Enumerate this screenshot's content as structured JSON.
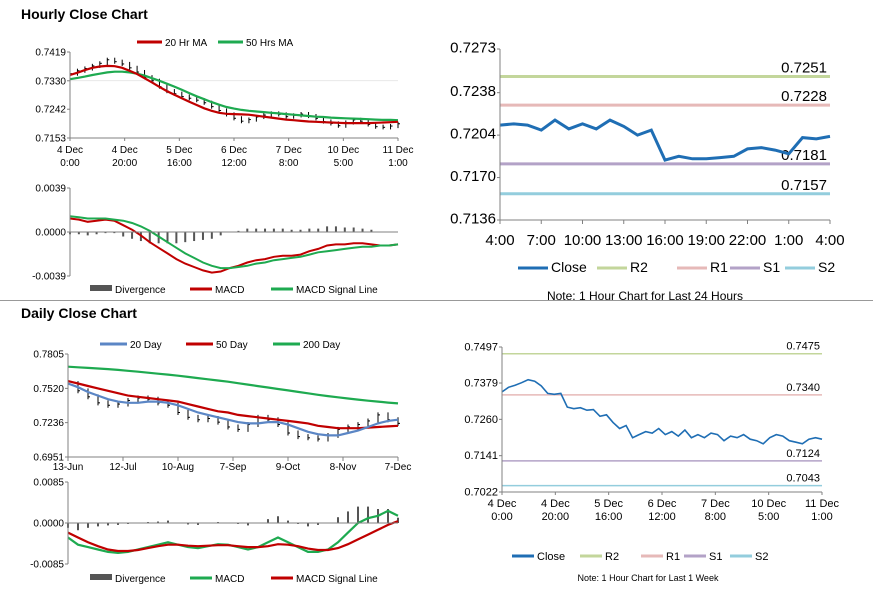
{
  "sections": {
    "hourly_title": "Hourly Close Chart",
    "daily_title": "Daily Close Chart"
  },
  "colors": {
    "ma_short": "#c00000",
    "ma_long": "#1eaa50",
    "ma_200": "#1eaa50",
    "ma_20day": "#5b86c5",
    "macd_red": "#c00000",
    "macd_green": "#1eaa50",
    "price": "#000000",
    "divergence": "#555555",
    "close_blue": "#1f6eb4",
    "r2": "#c3d69b",
    "r1": "#e6b9b8",
    "s1": "#b3a2c7",
    "s2": "#93cddd",
    "axis": "#808080"
  },
  "chart_data": [
    {
      "id": "hourly_price",
      "type": "line",
      "ylim": [
        0.7153,
        0.7419
      ],
      "ytick_labels": [
        "0.7419",
        "0.7330",
        "0.7242",
        "0.7153"
      ],
      "ytick_values": [
        0.7419,
        0.733,
        0.7242,
        0.7153
      ],
      "xtick_labels": [
        [
          "4 Dec",
          "0:00"
        ],
        [
          "4 Dec",
          "20:00"
        ],
        [
          "5 Dec",
          "16:00"
        ],
        [
          "6 Dec",
          "12:00"
        ],
        [
          "7 Dec",
          "8:00"
        ],
        [
          "10 Dec",
          "5:00"
        ],
        [
          "11 Dec",
          "1:00"
        ]
      ],
      "legend": [
        "20 Hr MA",
        "50 Hrs MA"
      ],
      "series": [
        {
          "name": "Close",
          "values": [
            0.7352,
            0.7361,
            0.7368,
            0.7376,
            0.7384,
            0.7395,
            0.7389,
            0.7382,
            0.737,
            0.7357,
            0.7341,
            0.733,
            0.7312,
            0.7298,
            0.729,
            0.7281,
            0.7276,
            0.727,
            0.7262,
            0.725,
            0.7238,
            0.7226,
            0.7214,
            0.7205,
            0.721,
            0.7218,
            0.7224,
            0.7229,
            0.7226,
            0.7219,
            0.7223,
            0.7227,
            0.7221,
            0.7214,
            0.7204,
            0.7198,
            0.7191,
            0.7201,
            0.7209,
            0.7205,
            0.7195,
            0.7188,
            0.7186,
            0.719,
            0.7197
          ]
        },
        {
          "name": "20 Hr MA",
          "values": [
            0.7348,
            0.7355,
            0.7363,
            0.737,
            0.7374,
            0.7376,
            0.7375,
            0.737,
            0.7361,
            0.7351,
            0.7338,
            0.7325,
            0.7311,
            0.7298,
            0.7287,
            0.7276,
            0.7265,
            0.7255,
            0.7245,
            0.7237,
            0.7231,
            0.7228,
            0.7227,
            0.7226,
            0.7225,
            0.7222,
            0.7219,
            0.7216,
            0.7213,
            0.721,
            0.7208,
            0.7206,
            0.7204,
            0.7203,
            0.7202,
            0.7201,
            0.72,
            0.7199,
            0.7199,
            0.7199,
            0.7199,
            0.72,
            0.7201,
            0.7202,
            0.7203
          ]
        },
        {
          "name": "50 Hrs MA",
          "values": [
            0.7335,
            0.7339,
            0.7343,
            0.7348,
            0.7352,
            0.7356,
            0.7358,
            0.7358,
            0.7356,
            0.7352,
            0.7346,
            0.7338,
            0.733,
            0.7321,
            0.7312,
            0.7302,
            0.7292,
            0.7282,
            0.7273,
            0.7264,
            0.7256,
            0.7249,
            0.7244,
            0.724,
            0.7237,
            0.7235,
            0.7233,
            0.7231,
            0.7229,
            0.7227,
            0.7225,
            0.7223,
            0.7221,
            0.7219,
            0.7218,
            0.7216,
            0.7215,
            0.7214,
            0.7213,
            0.7212,
            0.7211,
            0.721,
            0.7209,
            0.7209,
            0.7208
          ]
        }
      ]
    },
    {
      "id": "hourly_macd",
      "type": "line",
      "ylim": [
        -0.0039,
        0.0039
      ],
      "ytick_labels": [
        "0.0039",
        "0.0000",
        "-0.0039"
      ],
      "ytick_values": [
        0.0039,
        0.0,
        -0.0039
      ],
      "legend": [
        "Divergence",
        "MACD",
        "MACD Signal Line"
      ],
      "series": [
        {
          "name": "MACD",
          "values": [
            0.0012,
            0.0011,
            0.0009,
            0.001,
            0.0011,
            0.001,
            0.0006,
            0.0002,
            -0.0003,
            -0.0009,
            -0.0014,
            -0.0019,
            -0.0024,
            -0.0028,
            -0.0031,
            -0.0034,
            -0.0036,
            -0.0035,
            -0.0032,
            -0.003,
            -0.0027,
            -0.0025,
            -0.0024,
            -0.0022,
            -0.0021,
            -0.0021,
            -0.002,
            -0.0017,
            -0.0015,
            -0.0012,
            -0.0011,
            -0.0011,
            -0.001,
            -0.001,
            -0.0011,
            -0.0012,
            -0.0012,
            -0.0011
          ]
        },
        {
          "name": "MACD Signal Line",
          "values": [
            0.0014,
            0.0013,
            0.0012,
            0.0012,
            0.0012,
            0.0011,
            0.001,
            0.0008,
            0.0005,
            0.0001,
            -0.0004,
            -0.0009,
            -0.0014,
            -0.0019,
            -0.0023,
            -0.0027,
            -0.003,
            -0.0032,
            -0.0032,
            -0.0031,
            -0.003,
            -0.0028,
            -0.0027,
            -0.0025,
            -0.0024,
            -0.0023,
            -0.0022,
            -0.002,
            -0.0018,
            -0.0017,
            -0.0016,
            -0.0015,
            -0.0014,
            -0.0013,
            -0.0013,
            -0.0012,
            -0.0012,
            -0.0011
          ]
        },
        {
          "name": "Divergence",
          "values": [
            -0.0002,
            -0.0002,
            -0.0003,
            -0.0002,
            -0.0001,
            -0.0001,
            -0.0004,
            -0.0006,
            -0.0008,
            -0.001,
            -0.001,
            -0.001,
            -0.001,
            -0.0009,
            -0.0008,
            -0.0007,
            -0.0006,
            -0.0003,
            0.0,
            0.0001,
            0.0003,
            0.0003,
            0.0003,
            0.0003,
            0.0003,
            0.0002,
            0.0002,
            0.0003,
            0.0003,
            0.0005,
            0.0005,
            0.0004,
            0.0004,
            0.0003,
            0.0002,
            0.0,
            0.0,
            0.0
          ]
        }
      ]
    },
    {
      "id": "hourly_levels",
      "type": "line",
      "ylim": [
        0.7136,
        0.7273
      ],
      "ytick_labels": [
        "0.7273",
        "0.7238",
        "0.7204",
        "0.7170",
        "0.7136"
      ],
      "ytick_values": [
        0.7273,
        0.7238,
        0.7204,
        0.717,
        0.7136
      ],
      "xtick_labels": [
        "4:00",
        "7:00",
        "10:00",
        "13:00",
        "16:00",
        "19:00",
        "22:00",
        "1:00",
        "4:00"
      ],
      "levels": [
        {
          "name": "R2",
          "value": 0.7251,
          "label": "0.7251"
        },
        {
          "name": "R1",
          "value": 0.7228,
          "label": "0.7228"
        },
        {
          "name": "S1",
          "value": 0.7181,
          "label": "0.7181"
        },
        {
          "name": "S2",
          "value": 0.7157,
          "label": "0.7157"
        }
      ],
      "series": [
        {
          "name": "Close",
          "values": [
            0.7212,
            0.7213,
            0.7212,
            0.7208,
            0.7216,
            0.7209,
            0.7213,
            0.7209,
            0.7216,
            0.7211,
            0.7204,
            0.7208,
            0.7184,
            0.7187,
            0.7185,
            0.7185,
            0.7186,
            0.7187,
            0.7193,
            0.7194,
            0.7192,
            0.7189,
            0.7202,
            0.7201,
            0.7203
          ]
        }
      ],
      "legend": [
        "Close",
        "R2",
        "R1",
        "S1",
        "S2"
      ],
      "note": "Note: 1 Hour Chart for Last 24 Hours"
    },
    {
      "id": "daily_price",
      "type": "line",
      "ylim": [
        0.6951,
        0.7805
      ],
      "ytick_labels": [
        "0.7805",
        "0.7520",
        "0.7236",
        "0.6951"
      ],
      "ytick_values": [
        0.7805,
        0.752,
        0.7236,
        0.6951
      ],
      "xtick_labels": [
        "13-Jun",
        "12-Jul",
        "10-Aug",
        "7-Sep",
        "9-Oct",
        "8-Nov",
        "7-Dec"
      ],
      "legend": [
        "20 Day",
        "50 Day",
        "200 Day"
      ],
      "series": [
        {
          "name": "Close",
          "values": [
            0.756,
            0.75,
            0.745,
            0.74,
            0.738,
            0.739,
            0.742,
            0.744,
            0.743,
            0.74,
            0.738,
            0.732,
            0.728,
            0.726,
            0.727,
            0.724,
            0.72,
            0.718,
            0.722,
            0.728,
            0.726,
            0.722,
            0.715,
            0.712,
            0.711,
            0.71,
            0.713,
            0.718,
            0.72,
            0.722,
            0.725,
            0.73,
            0.726,
            0.723
          ]
        },
        {
          "name": "20 Day",
          "values": [
            0.756,
            0.753,
            0.749,
            0.746,
            0.743,
            0.741,
            0.74,
            0.74,
            0.741,
            0.741,
            0.74,
            0.738,
            0.735,
            0.732,
            0.73,
            0.728,
            0.726,
            0.724,
            0.723,
            0.723,
            0.724,
            0.724,
            0.722,
            0.719,
            0.716,
            0.714,
            0.713,
            0.713,
            0.715,
            0.717,
            0.72,
            0.723,
            0.725,
            0.726
          ]
        },
        {
          "name": "50 Day",
          "values": [
            0.758,
            0.756,
            0.754,
            0.752,
            0.75,
            0.748,
            0.746,
            0.745,
            0.744,
            0.743,
            0.742,
            0.741,
            0.739,
            0.737,
            0.735,
            0.733,
            0.732,
            0.73,
            0.729,
            0.728,
            0.727,
            0.726,
            0.725,
            0.724,
            0.723,
            0.721,
            0.72,
            0.719,
            0.719,
            0.719,
            0.7195,
            0.72,
            0.7205,
            0.721
          ]
        },
        {
          "name": "200 Day",
          "values": [
            0.77,
            0.7695,
            0.769,
            0.7685,
            0.768,
            0.7673,
            0.7666,
            0.7658,
            0.765,
            0.7642,
            0.7634,
            0.7625,
            0.7615,
            0.7605,
            0.7595,
            0.7585,
            0.7575,
            0.7563,
            0.7551,
            0.7539,
            0.7527,
            0.7515,
            0.7503,
            0.7491,
            0.7479,
            0.7467,
            0.7456,
            0.7446,
            0.7436,
            0.7427,
            0.7418,
            0.741,
            0.7402,
            0.7395
          ]
        }
      ]
    },
    {
      "id": "daily_macd",
      "type": "line",
      "ylim": [
        -0.0085,
        0.0085
      ],
      "ytick_labels": [
        "0.0085",
        "0.0000",
        "-0.0085"
      ],
      "ytick_values": [
        0.0085,
        0.0,
        -0.0085
      ],
      "legend": [
        "Divergence",
        "MACD",
        "MACD Signal Line"
      ],
      "series": [
        {
          "name": "MACD",
          "values": [
            -0.003,
            -0.0045,
            -0.005,
            -0.0055,
            -0.006,
            -0.0062,
            -0.006,
            -0.0055,
            -0.005,
            -0.0045,
            -0.004,
            -0.0045,
            -0.005,
            -0.0052,
            -0.0048,
            -0.0044,
            -0.0045,
            -0.005,
            -0.0055,
            -0.005,
            -0.004,
            -0.003,
            -0.004,
            -0.005,
            -0.006,
            -0.006,
            -0.0055,
            -0.004,
            -0.002,
            0.0,
            0.001,
            0.0015,
            0.0025,
            0.0015
          ]
        },
        {
          "name": "MACD Signal Line",
          "values": [
            -0.002,
            -0.003,
            -0.004,
            -0.0048,
            -0.0055,
            -0.0058,
            -0.0058,
            -0.0056,
            -0.0052,
            -0.0048,
            -0.0045,
            -0.0045,
            -0.0047,
            -0.0048,
            -0.0047,
            -0.0046,
            -0.0046,
            -0.0048,
            -0.005,
            -0.005,
            -0.0048,
            -0.0044,
            -0.0045,
            -0.0048,
            -0.0053,
            -0.0056,
            -0.0056,
            -0.0052,
            -0.0044,
            -0.0034,
            -0.0024,
            -0.0014,
            -0.0004,
            0.0004
          ]
        },
        {
          "name": "Divergence",
          "values": [
            -0.001,
            -0.0015,
            -0.001,
            -0.0007,
            -0.0005,
            -0.0004,
            -0.0002,
            0.0001,
            0.0002,
            0.0003,
            0.0005,
            0.0,
            -0.0003,
            -0.0004,
            -0.0001,
            0.0002,
            0.0001,
            -0.0002,
            -0.0005,
            0.0,
            0.0008,
            0.0014,
            0.0005,
            -0.0002,
            -0.0007,
            -0.0004,
            0.0001,
            0.0012,
            0.0024,
            0.0034,
            0.0034,
            0.0029,
            0.0029,
            0.0011
          ]
        }
      ]
    },
    {
      "id": "daily_levels",
      "type": "line",
      "ylim": [
        0.7022,
        0.7497
      ],
      "ytick_labels": [
        "0.7497",
        "0.7379",
        "0.7260",
        "0.7141",
        "0.7022"
      ],
      "ytick_values": [
        0.7497,
        0.7379,
        0.726,
        0.7141,
        0.7022
      ],
      "xtick_labels": [
        [
          "4 Dec",
          "0:00"
        ],
        [
          "4 Dec",
          "20:00"
        ],
        [
          "5 Dec",
          "16:00"
        ],
        [
          "6 Dec",
          "12:00"
        ],
        [
          "7 Dec",
          "8:00"
        ],
        [
          "10 Dec",
          "5:00"
        ],
        [
          "11 Dec",
          "1:00"
        ]
      ],
      "levels": [
        {
          "name": "R2",
          "value": 0.7475,
          "label": "0.7475"
        },
        {
          "name": "R1",
          "value": 0.734,
          "label": "0.7340"
        },
        {
          "name": "S1",
          "value": 0.7124,
          "label": "0.7124"
        },
        {
          "name": "S2",
          "value": 0.7043,
          "label": "0.7043"
        }
      ],
      "series": [
        {
          "name": "Close",
          "values": [
            0.735,
            0.7365,
            0.7372,
            0.738,
            0.739,
            0.7385,
            0.737,
            0.7345,
            0.7342,
            0.7345,
            0.73,
            0.7295,
            0.7298,
            0.729,
            0.7292,
            0.727,
            0.7275,
            0.725,
            0.723,
            0.724,
            0.72,
            0.721,
            0.722,
            0.7215,
            0.723,
            0.721,
            0.722,
            0.7205,
            0.7225,
            0.72,
            0.721,
            0.72,
            0.7215,
            0.721,
            0.719,
            0.7205,
            0.72,
            0.721,
            0.7195,
            0.719,
            0.718,
            0.72,
            0.721,
            0.7205,
            0.719,
            0.7185,
            0.718,
            0.7195,
            0.72,
            0.7195
          ]
        }
      ],
      "legend": [
        "Close",
        "R2",
        "R1",
        "S1",
        "S2"
      ],
      "note": "Note: 1 Hour Chart for Last 1 Week"
    }
  ]
}
